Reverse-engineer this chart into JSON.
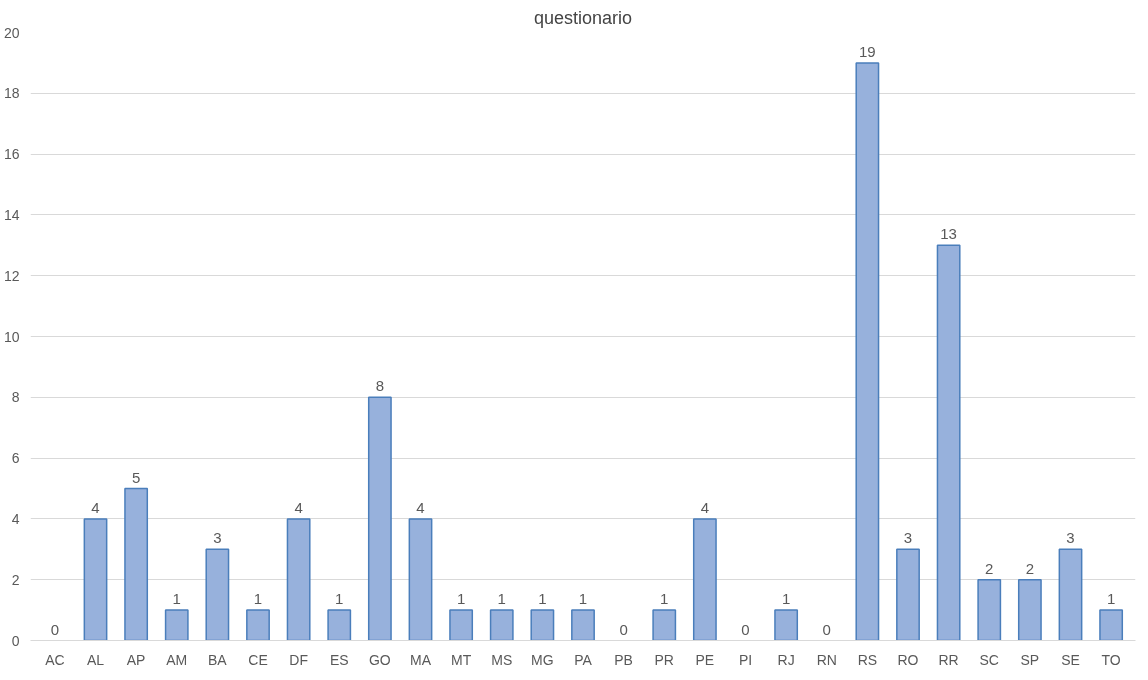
{
  "chart_data": {
    "type": "bar",
    "title": "questionario",
    "categories": [
      "AC",
      "AL",
      "AP",
      "AM",
      "BA",
      "CE",
      "DF",
      "ES",
      "GO",
      "MA",
      "MT",
      "MS",
      "MG",
      "PA",
      "PB",
      "PR",
      "PE",
      "PI",
      "RJ",
      "RN",
      "RS",
      "RO",
      "RR",
      "SC",
      "SP",
      "SE",
      "TO"
    ],
    "values": [
      0,
      4,
      5,
      1,
      3,
      1,
      4,
      1,
      8,
      4,
      1,
      1,
      1,
      1,
      0,
      1,
      4,
      0,
      1,
      0,
      19,
      3,
      13,
      2,
      2,
      3,
      1
    ],
    "color": "#97b1dc",
    "ylim": [
      0,
      20
    ],
    "yticks": [
      0,
      2,
      4,
      6,
      8,
      10,
      12,
      14,
      16,
      18,
      20
    ],
    "grid": "y",
    "data_labels": true
  }
}
